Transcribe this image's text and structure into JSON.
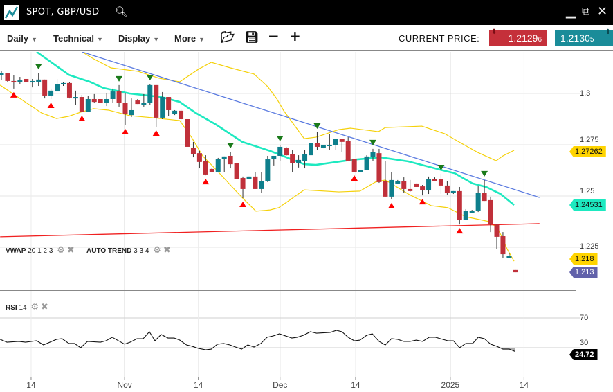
{
  "window": {
    "title": "SPOT, GBP/USD",
    "icons": [
      "chart-logo-icon",
      "search-icon",
      "minimize-icon",
      "popout-icon",
      "close-icon"
    ]
  },
  "toolbar": {
    "menus": [
      "Daily",
      "Technical",
      "Display",
      "More"
    ],
    "icons": [
      "open-folder-icon",
      "save-icon",
      "zoom-out-icon",
      "zoom-in-icon"
    ],
    "current_price_label": "CURRENT PRICE:",
    "bid": "1.2129",
    "bid_pip": "6",
    "ask": "1.2130",
    "ask_pip": "5"
  },
  "colors": {
    "bid": "#c5303a",
    "ask": "#1a8c99",
    "up_candle": "#0e7f8c",
    "down_candle": "#c0303a",
    "ma": "#1de9c0",
    "bands": "#f5d10a",
    "trendline": "#5b7be0",
    "support": "#f02020"
  },
  "indicators": {
    "vwap": {
      "name": "VWAP",
      "params": "20 1 2 3"
    },
    "autotrend": {
      "name": "AUTO TREND",
      "params": "3 3 4"
    },
    "rsi": {
      "name": "RSI",
      "params": "14"
    }
  },
  "axis": {
    "price_ticks": [
      "1.3",
      "1.275",
      "1.25",
      "1.225"
    ],
    "rsi_ticks": [
      "70",
      "30"
    ],
    "x_labels": [
      "14",
      "Nov",
      "14",
      "Dec",
      "14",
      "2025",
      "14"
    ]
  },
  "tags": {
    "upper_band": "1.27262",
    "ma": "1.24531",
    "lower_band": "1.218",
    "last": "1.213",
    "rsi": "24.72"
  },
  "chart_data": {
    "type": "candlestick",
    "x_label_positions": [
      4.8,
      19.9,
      31.8,
      45.0,
      57.2,
      72.5,
      84.4
    ],
    "price_ticks": [
      1.3,
      1.275,
      1.25,
      1.225
    ],
    "candles": [
      [
        1.3088,
        1.3111,
        1.3064,
        1.3101
      ],
      [
        1.3101,
        1.3101,
        1.3057,
        1.3061
      ],
      [
        1.3061,
        1.3091,
        1.3024,
        1.3054
      ],
      [
        1.3057,
        1.3081,
        1.3044,
        1.3064
      ],
      [
        1.3071,
        1.3071,
        1.3054,
        1.3054
      ],
      [
        1.3054,
        1.3071,
        1.303,
        1.3061
      ],
      [
        1.3057,
        1.3101,
        1.3037,
        1.3068
      ],
      [
        1.3068,
        1.3068,
        1.2976,
        1.299
      ],
      [
        1.299,
        1.3024,
        1.2973,
        1.3014
      ],
      [
        1.301,
        1.3071,
        1.301,
        1.3044
      ],
      [
        1.3044,
        1.3057,
        1.3037,
        1.3051
      ],
      [
        1.3051,
        1.3054,
        1.2976,
        1.298
      ],
      [
        1.2976,
        1.3014,
        1.2943,
        1.2983
      ],
      [
        1.2983,
        1.2993,
        1.2909,
        1.2909
      ],
      [
        1.2912,
        1.2987,
        1.2909,
        1.2973
      ],
      [
        1.2973,
        1.2997,
        1.2956,
        1.2959
      ],
      [
        1.2973,
        1.2973,
        1.2956,
        1.2956
      ],
      [
        1.2956,
        1.3,
        1.2939,
        1.2973
      ],
      [
        1.2973,
        1.3024,
        1.2956,
        1.301
      ],
      [
        1.301,
        1.3041,
        1.2936,
        1.2956
      ],
      [
        1.2956,
        1.3,
        1.2845,
        1.2899
      ],
      [
        1.2895,
        1.2976,
        1.2885,
        1.2919
      ],
      [
        1.2966,
        1.2973,
        1.2949,
        1.2949
      ],
      [
        1.2943,
        1.2997,
        1.2936,
        1.2953
      ],
      [
        1.2956,
        1.3047,
        1.2946,
        1.3041
      ],
      [
        1.3041,
        1.3041,
        1.2838,
        1.2882
      ],
      [
        1.2882,
        1.3007,
        1.2875,
        1.2983
      ],
      [
        1.2983,
        1.2983,
        1.2889,
        1.2919
      ],
      [
        1.2902,
        1.2919,
        1.2895,
        1.2916
      ],
      [
        1.2916,
        1.2926,
        1.2855,
        1.2875
      ],
      [
        1.2875,
        1.2875,
        1.272,
        1.274
      ],
      [
        1.2736,
        1.2764,
        1.2689,
        1.2706
      ],
      [
        1.2709,
        1.272,
        1.2635,
        1.2666
      ],
      [
        1.2669,
        1.2699,
        1.2601,
        1.2605
      ],
      [
        1.2632,
        1.2635,
        1.2615,
        1.2618
      ],
      [
        1.2618,
        1.2686,
        1.2618,
        1.2679
      ],
      [
        1.2679,
        1.2693,
        1.2618,
        1.2693
      ],
      [
        1.2696,
        1.2716,
        1.2635,
        1.2655
      ],
      [
        1.2659,
        1.2659,
        1.2584,
        1.2584
      ],
      [
        1.2588,
        1.2595,
        1.249,
        1.2534
      ],
      [
        1.2584,
        1.2595,
        1.2584,
        1.2595
      ],
      [
        1.2595,
        1.2618,
        1.2534,
        1.2534
      ],
      [
        1.2534,
        1.2618,
        1.2514,
        1.2574
      ],
      [
        1.2574,
        1.2696,
        1.2568,
        1.2679
      ],
      [
        1.2679,
        1.2696,
        1.2649,
        1.2696
      ],
      [
        1.2696,
        1.275,
        1.2672,
        1.274
      ],
      [
        1.2733,
        1.274,
        1.2696,
        1.2699
      ],
      [
        1.2703,
        1.2723,
        1.2618,
        1.2659
      ],
      [
        1.2659,
        1.2699,
        1.2639,
        1.2676
      ],
      [
        1.2672,
        1.2723,
        1.2635,
        1.2703
      ],
      [
        1.2699,
        1.277,
        1.2696,
        1.276
      ],
      [
        1.276,
        1.2811,
        1.2723,
        1.274
      ],
      [
        1.2736,
        1.275,
        1.2733,
        1.275
      ],
      [
        1.2747,
        1.2804,
        1.2723,
        1.275
      ],
      [
        1.2747,
        1.278,
        1.2726,
        1.278
      ],
      [
        1.278,
        1.278,
        1.2713,
        1.2764
      ],
      [
        1.2767,
        1.2787,
        1.2669,
        1.2669
      ],
      [
        1.2682,
        1.2682,
        1.2618,
        1.2618
      ],
      [
        1.2615,
        1.2628,
        1.2615,
        1.2628
      ],
      [
        1.2625,
        1.2699,
        1.2625,
        1.2693
      ],
      [
        1.2689,
        1.273,
        1.2669,
        1.2713
      ],
      [
        1.2709,
        1.273,
        1.2564,
        1.2568
      ],
      [
        1.2571,
        1.2669,
        1.2497,
        1.2497
      ],
      [
        1.2497,
        1.2615,
        1.2483,
        1.2578
      ],
      [
        1.2561,
        1.2578,
        1.2561,
        1.2571
      ],
      [
        1.2571,
        1.2591,
        1.2514,
        1.2534
      ],
      [
        1.2534,
        1.2578,
        1.252,
        1.2524
      ],
      [
        1.2561,
        1.2561,
        1.2544,
        1.2544
      ],
      [
        1.2547,
        1.2554,
        1.2503,
        1.2527
      ],
      [
        1.2527,
        1.2595,
        1.251,
        1.2581
      ],
      [
        1.2584,
        1.2591,
        1.2574,
        1.2574
      ],
      [
        1.2581,
        1.2608,
        1.251,
        1.2551
      ],
      [
        1.2551,
        1.2571,
        1.2507,
        1.2514
      ],
      [
        1.2514,
        1.2524,
        1.251,
        1.2524
      ],
      [
        1.2524,
        1.2544,
        1.2361,
        1.2382
      ],
      [
        1.2382,
        1.2436,
        1.2382,
        1.2429
      ],
      [
        1.2419,
        1.2432,
        1.2419,
        1.2429
      ],
      [
        1.2426,
        1.2551,
        1.2422,
        1.2514
      ],
      [
        1.2514,
        1.2578,
        1.2476,
        1.2476
      ],
      [
        1.248,
        1.2497,
        1.2324,
        1.2361
      ],
      [
        1.2361,
        1.2365,
        1.2243,
        1.2301
      ],
      [
        1.2304,
        1.2324,
        1.2199,
        1.2216
      ],
      [
        1.2199,
        1.2223,
        1.2199,
        1.2209
      ],
      [
        1.2139,
        1.2139,
        1.2128,
        1.2128
      ]
    ],
    "buy_signals": [
      2,
      8,
      13,
      20,
      25,
      33,
      39,
      57,
      63,
      68,
      74
    ],
    "sell_signals": [
      6,
      19,
      24,
      37,
      45,
      51,
      60,
      71,
      78
    ],
    "ma": [
      [
        5.7,
        1.3203
      ],
      [
        10.9,
        1.3091
      ],
      [
        14.3,
        1.3057
      ],
      [
        16.5,
        1.3027
      ],
      [
        20.7,
        1.3
      ],
      [
        25.8,
        1.2983
      ],
      [
        28.8,
        1.2959
      ],
      [
        31.4,
        1.2905
      ],
      [
        34.7,
        1.2848
      ],
      [
        38.9,
        1.2764
      ],
      [
        43.4,
        1.272
      ],
      [
        48.9,
        1.2655
      ],
      [
        50.8,
        1.2652
      ],
      [
        56.4,
        1.2676
      ],
      [
        61.2,
        1.2689
      ],
      [
        65.7,
        1.2669
      ],
      [
        70.9,
        1.2628
      ],
      [
        73.2,
        1.2611
      ],
      [
        76.1,
        1.2561
      ],
      [
        78.3,
        1.2544
      ],
      [
        80.6,
        1.251
      ],
      [
        82.8,
        1.2456
      ]
    ],
    "upper_band": [
      [
        13.0,
        1.3203
      ],
      [
        14.9,
        1.3169
      ],
      [
        17.7,
        1.3125
      ],
      [
        22.1,
        1.3108
      ],
      [
        25.5,
        1.3074
      ],
      [
        28.8,
        1.3057
      ],
      [
        31.8,
        1.3118
      ],
      [
        33.9,
        1.3152
      ],
      [
        37.0,
        1.3125
      ],
      [
        40.8,
        1.3095
      ],
      [
        43.0,
        1.3034
      ],
      [
        44.5,
        1.2973
      ],
      [
        45.6,
        1.2916
      ],
      [
        48.9,
        1.278
      ],
      [
        50.8,
        1.2787
      ],
      [
        54.5,
        1.2824
      ],
      [
        56.4,
        1.2831
      ],
      [
        60.9,
        1.2814
      ],
      [
        62.0,
        1.2834
      ],
      [
        67.9,
        1.2841
      ],
      [
        71.6,
        1.2804
      ],
      [
        73.9,
        1.2764
      ],
      [
        76.9,
        1.2713
      ],
      [
        79.9,
        1.2672
      ],
      [
        81.0,
        1.2696
      ],
      [
        82.8,
        1.2723
      ]
    ],
    "lower_band": [
      [
        -0.2,
        1.3041
      ],
      [
        1.8,
        1.3
      ],
      [
        6.5,
        1.2905
      ],
      [
        8.9,
        1.2878
      ],
      [
        10.9,
        1.2889
      ],
      [
        12.8,
        1.2909
      ],
      [
        14.9,
        1.2926
      ],
      [
        17.3,
        1.2919
      ],
      [
        20.7,
        1.2892
      ],
      [
        24.4,
        1.2882
      ],
      [
        28.8,
        1.2868
      ],
      [
        30.7,
        1.2787
      ],
      [
        32.5,
        1.2696
      ],
      [
        34.7,
        1.2628
      ],
      [
        37.8,
        1.2527
      ],
      [
        39.2,
        1.2483
      ],
      [
        41.1,
        1.2426
      ],
      [
        43.4,
        1.2432
      ],
      [
        44.8,
        1.2443
      ],
      [
        46.7,
        1.2483
      ],
      [
        48.9,
        1.253
      ],
      [
        54.5,
        1.252
      ],
      [
        57.9,
        1.2524
      ],
      [
        60.4,
        1.2568
      ],
      [
        62.0,
        1.2578
      ],
      [
        65.7,
        1.251
      ],
      [
        69.4,
        1.2453
      ],
      [
        72.1,
        1.2443
      ],
      [
        75.0,
        1.2399
      ],
      [
        78.8,
        1.2375
      ],
      [
        80.2,
        1.2341
      ],
      [
        81.7,
        1.224
      ],
      [
        82.8,
        1.2182
      ]
    ],
    "trendline": [
      [
        13.0,
        1.3203
      ],
      [
        86.9,
        1.2493
      ]
    ],
    "support_line": [
      [
        -0.2,
        1.2301
      ],
      [
        86.9,
        1.2365
      ]
    ],
    "rsi": [
      [
        -0.2,
        41.2
      ],
      [
        0.9,
        37.4
      ],
      [
        2.8,
        38.4
      ],
      [
        3.9,
        37.4
      ],
      [
        5.7,
        39.3
      ],
      [
        6.8,
        33.7
      ],
      [
        8.9,
        41.2
      ],
      [
        9.8,
        42.1
      ],
      [
        10.9,
        35.6
      ],
      [
        11.8,
        35.6
      ],
      [
        12.8,
        30.0
      ],
      [
        13.9,
        38.4
      ],
      [
        16.0,
        37.4
      ],
      [
        16.9,
        39.3
      ],
      [
        17.9,
        44.0
      ],
      [
        19.9,
        34.7
      ],
      [
        20.8,
        37.4
      ],
      [
        21.9,
        42.1
      ],
      [
        22.9,
        42.1
      ],
      [
        23.9,
        51.4
      ],
      [
        24.8,
        39.3
      ],
      [
        25.8,
        47.7
      ],
      [
        26.9,
        43.0
      ],
      [
        27.9,
        43.0
      ],
      [
        28.8,
        40.2
      ],
      [
        29.9,
        33.7
      ],
      [
        30.8,
        31.9
      ],
      [
        31.8,
        29.1
      ],
      [
        33.0,
        27.2
      ],
      [
        33.9,
        28.1
      ],
      [
        34.9,
        34.7
      ],
      [
        35.9,
        35.6
      ],
      [
        36.9,
        33.7
      ],
      [
        37.8,
        30.9
      ],
      [
        38.8,
        28.1
      ],
      [
        39.8,
        33.7
      ],
      [
        40.8,
        30.9
      ],
      [
        41.9,
        35.6
      ],
      [
        42.9,
        44.0
      ],
      [
        43.9,
        45.8
      ],
      [
        44.9,
        48.6
      ],
      [
        46.9,
        43.0
      ],
      [
        47.8,
        44.0
      ],
      [
        48.8,
        46.7
      ],
      [
        49.9,
        51.4
      ],
      [
        50.9,
        49.5
      ],
      [
        53.1,
        50.5
      ],
      [
        54.1,
        53.3
      ],
      [
        55.0,
        51.4
      ],
      [
        56.0,
        44.0
      ],
      [
        57.0,
        39.3
      ],
      [
        57.9,
        40.2
      ],
      [
        59.0,
        46.7
      ],
      [
        59.9,
        48.6
      ],
      [
        61.0,
        38.4
      ],
      [
        62.0,
        33.7
      ],
      [
        63.0,
        42.1
      ],
      [
        64.0,
        41.2
      ],
      [
        65.0,
        38.4
      ],
      [
        66.0,
        38.4
      ],
      [
        67.0,
        40.2
      ],
      [
        68.0,
        38.4
      ],
      [
        69.1,
        44.0
      ],
      [
        70.1,
        44.0
      ],
      [
        72.1,
        39.3
      ],
      [
        73.0,
        39.3
      ],
      [
        74.0,
        30.0
      ],
      [
        75.0,
        35.6
      ],
      [
        76.1,
        35.6
      ],
      [
        77.0,
        44.0
      ],
      [
        78.0,
        42.1
      ],
      [
        79.0,
        34.7
      ],
      [
        80.0,
        31.9
      ],
      [
        81.0,
        28.1
      ],
      [
        82.0,
        28.1
      ],
      [
        83.0,
        24.72
      ]
    ],
    "rsi_levels": [
      70,
      30
    ]
  }
}
